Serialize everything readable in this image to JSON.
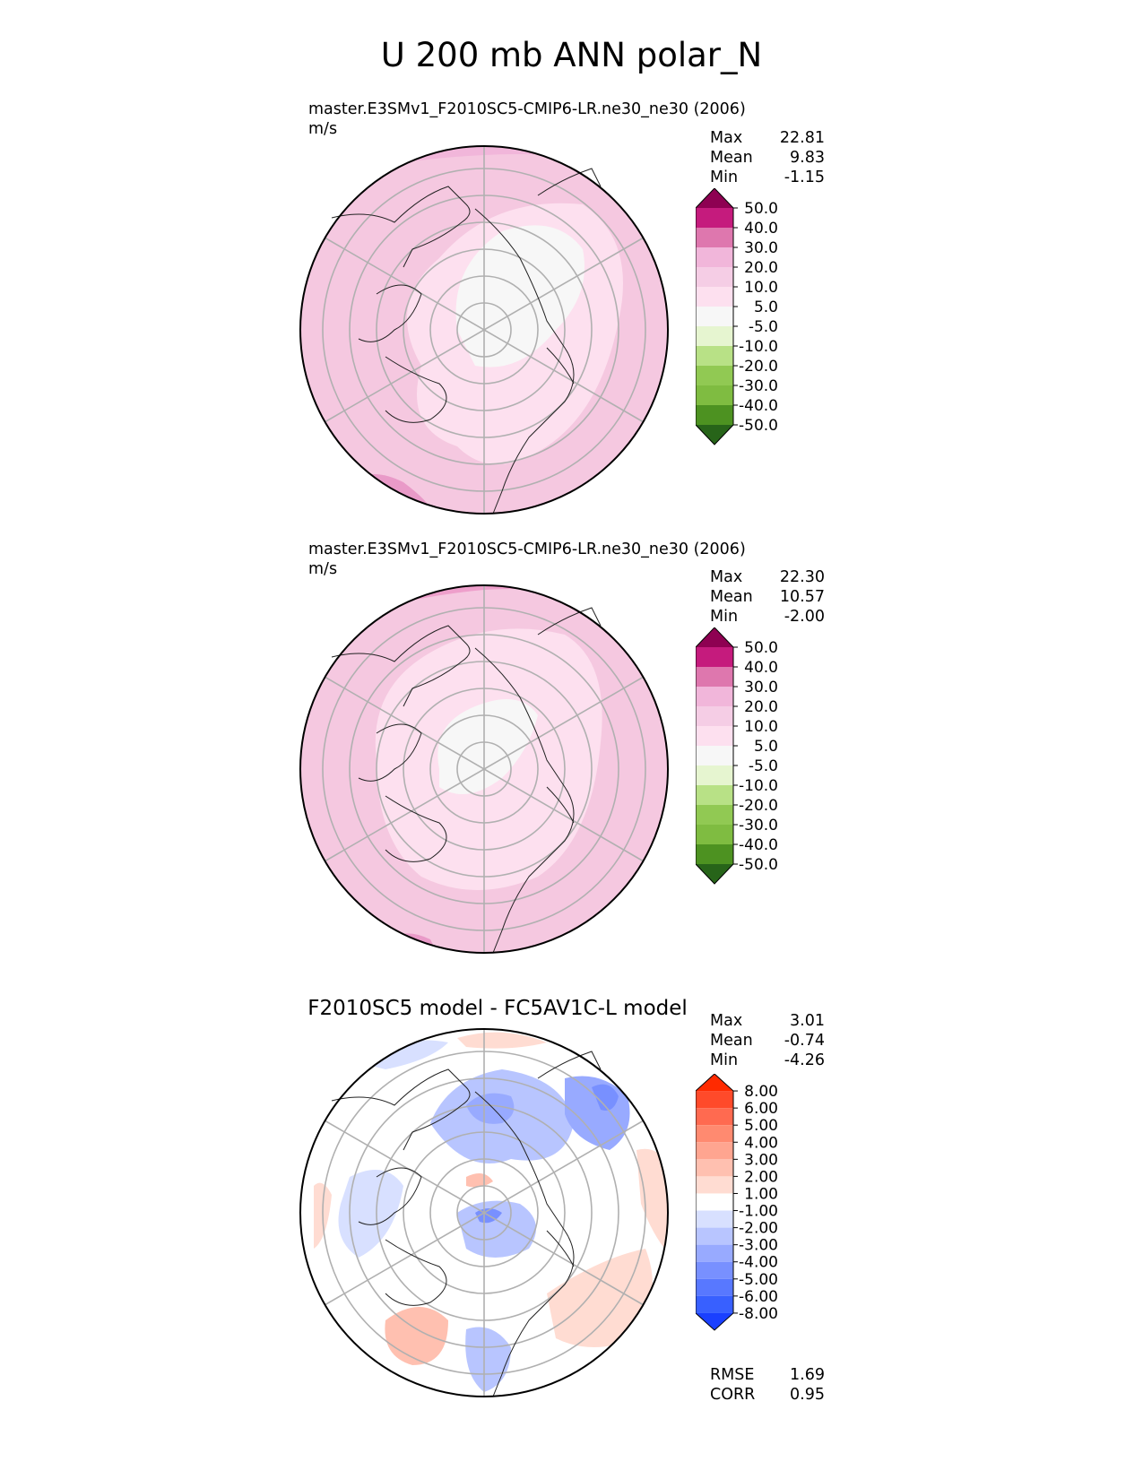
{
  "title": "U 200 mb ANN polar_N",
  "panels": [
    {
      "id": "test",
      "title": "master.E3SMv1_F2010SC5-CMIP6-LR.ne30_ne30 (2006)",
      "units": "m/s",
      "stats": [
        {
          "label": "Max",
          "value": "22.81"
        },
        {
          "label": "Mean",
          "value": "9.83"
        },
        {
          "label": "Min",
          "value": "-1.15"
        }
      ],
      "colorbar": {
        "ticks": [
          "50.0",
          "40.0",
          "30.0",
          "20.0",
          "10.0",
          "5.0",
          "-5.0",
          "-10.0",
          "-20.0",
          "-30.0",
          "-40.0",
          "-50.0"
        ],
        "colors": [
          "#8e0152",
          "#c51b7d",
          "#de77ae",
          "#f1b6da",
          "#f5cde5",
          "#fde0ef",
          "#f7f7f7",
          "#e6f5d0",
          "#b8e186",
          "#91c953",
          "#7fbc41",
          "#4d9221",
          "#276419"
        ]
      }
    },
    {
      "id": "reference",
      "title": "master.E3SMv1_F2010SC5-CMIP6-LR.ne30_ne30 (2006)",
      "units": "m/s",
      "stats": [
        {
          "label": "Max",
          "value": "22.30"
        },
        {
          "label": "Mean",
          "value": "10.57"
        },
        {
          "label": "Min",
          "value": "-2.00"
        }
      ],
      "colorbar": {
        "ticks": [
          "50.0",
          "40.0",
          "30.0",
          "20.0",
          "10.0",
          "5.0",
          "-5.0",
          "-10.0",
          "-20.0",
          "-30.0",
          "-40.0",
          "-50.0"
        ],
        "colors": [
          "#8e0152",
          "#c51b7d",
          "#de77ae",
          "#f1b6da",
          "#f5cde5",
          "#fde0ef",
          "#f7f7f7",
          "#e6f5d0",
          "#b8e186",
          "#91c953",
          "#7fbc41",
          "#4d9221",
          "#276419"
        ]
      }
    },
    {
      "id": "difference",
      "title": "F2010SC5 model - FC5AV1C-L model",
      "units": "",
      "stats": [
        {
          "label": "Max",
          "value": "3.01"
        },
        {
          "label": "Mean",
          "value": "-0.74"
        },
        {
          "label": "Min",
          "value": "-4.26"
        }
      ],
      "colorbar": {
        "ticks": [
          "8.00",
          "6.00",
          "5.00",
          "4.00",
          "3.00",
          "2.00",
          "1.00",
          "-1.00",
          "-2.00",
          "-3.00",
          "-4.00",
          "-5.00",
          "-6.00",
          "-8.00"
        ],
        "colors": [
          "#ff2a00",
          "#ff4a2a",
          "#ff6a50",
          "#ff8a70",
          "#ffa590",
          "#ffc0b0",
          "#ffdcd2",
          "#ffffff",
          "#d8e0ff",
          "#b8c5ff",
          "#98aaff",
          "#7890ff",
          "#5878ff",
          "#3860ff",
          "#1a40ff"
        ]
      },
      "metrics": [
        {
          "label": "RMSE",
          "value": "1.69"
        },
        {
          "label": "CORR",
          "value": "0.95"
        }
      ]
    }
  ]
}
